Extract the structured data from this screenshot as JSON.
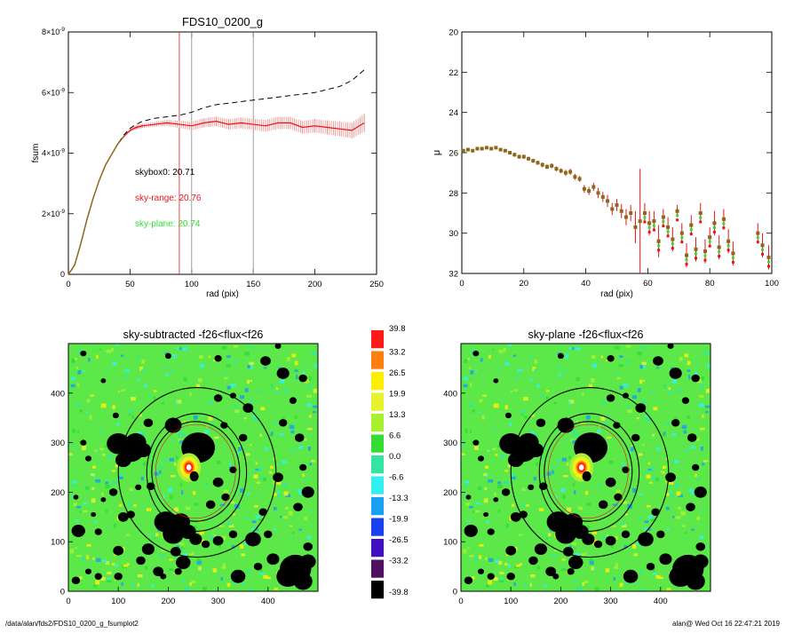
{
  "colors": {
    "red": "#e8141b",
    "pink": "#f08a8a",
    "green": "#33dd33",
    "black": "#000000",
    "gray": "#888888",
    "olive": "#8a6a1a"
  },
  "chart_data": [
    {
      "type": "line",
      "title": "FDS10_0200_g",
      "xlabel": "rad (pix)",
      "ylabel": "fsum",
      "xlim": [
        0,
        250
      ],
      "ylim": [
        0,
        8e-09
      ],
      "xticks": [
        "0",
        "50",
        "100",
        "150",
        "200",
        "250"
      ],
      "yticks": [
        {
          "base": "0",
          "exp": ""
        },
        {
          "base": "2×10",
          "exp": "-9"
        },
        {
          "base": "4×10",
          "exp": "-9"
        },
        {
          "base": "6×10",
          "exp": "-9"
        },
        {
          "base": "8×10",
          "exp": "-9"
        }
      ],
      "vlines": [
        {
          "x": 90,
          "color": "#e8141b"
        },
        {
          "x": 100,
          "color": "#888888"
        },
        {
          "x": 150,
          "color": "#888888"
        }
      ],
      "annotations": [
        {
          "label": "skybox0:",
          "value": "20.71",
          "color": "#000000"
        },
        {
          "label": "sky-range:",
          "value": "20.76",
          "color": "#e8141b"
        },
        {
          "label": "sky-plane:",
          "value": "20.74",
          "color": "#33dd33"
        }
      ],
      "series": [
        {
          "style": "dashed",
          "color": "#000000",
          "x": [
            0,
            5,
            10,
            15,
            20,
            25,
            30,
            35,
            40,
            45,
            50,
            55,
            60,
            70,
            80,
            90,
            100,
            110,
            120,
            130,
            140,
            150,
            160,
            170,
            180,
            190,
            200,
            210,
            220,
            230,
            240
          ],
          "y": [
            0,
            3e-10,
            1e-09,
            1.8e-09,
            2.5e-09,
            3.1e-09,
            3.6e-09,
            3.95e-09,
            4.3e-09,
            4.6e-09,
            4.82e-09,
            4.95e-09,
            5.05e-09,
            5.15e-09,
            5.2e-09,
            5.25e-09,
            5.35e-09,
            5.5e-09,
            5.6e-09,
            5.65e-09,
            5.7e-09,
            5.75e-09,
            5.8e-09,
            5.85e-09,
            5.9e-09,
            5.95e-09,
            6e-09,
            6.1e-09,
            6.2e-09,
            6.4e-09,
            6.75e-09
          ]
        },
        {
          "style": "errorbar",
          "color": "#e8141b",
          "x": [
            0,
            5,
            10,
            15,
            20,
            25,
            30,
            35,
            40,
            45,
            50,
            55,
            60,
            70,
            80,
            90,
            100,
            110,
            120,
            130,
            140,
            150,
            160,
            170,
            180,
            190,
            200,
            210,
            220,
            230,
            240
          ],
          "y": [
            0,
            3e-10,
            1e-09,
            1.8e-09,
            2.5e-09,
            3.1e-09,
            3.6e-09,
            3.95e-09,
            4.3e-09,
            4.55e-09,
            4.75e-09,
            4.85e-09,
            4.9e-09,
            4.95e-09,
            5e-09,
            4.95e-09,
            4.9e-09,
            5e-09,
            5.05e-09,
            4.95e-09,
            5e-09,
            4.95e-09,
            4.9e-09,
            5e-09,
            5e-09,
            4.85e-09,
            4.9e-09,
            4.85e-09,
            4.8e-09,
            4.75e-09,
            5e-09
          ],
          "err": [
            0,
            0,
            0,
            0,
            0,
            0,
            0,
            0,
            0,
            2e-11,
            4e-11,
            6e-11,
            7e-11,
            8e-11,
            1e-10,
            1.2e-10,
            1.4e-10,
            1.5e-10,
            1.6e-10,
            1.7e-10,
            1.8e-10,
            1.8e-10,
            1.9e-10,
            2e-10,
            2e-10,
            2.1e-10,
            2.2e-10,
            2.3e-10,
            2.4e-10,
            2.6e-10,
            3e-10
          ]
        }
      ]
    },
    {
      "type": "scatter",
      "title": "",
      "xlabel": "rad (pix)",
      "ylabel": "μ",
      "xlim": [
        0,
        100
      ],
      "ylim": [
        32,
        20
      ],
      "xticks": [
        "0",
        "20",
        "40",
        "60",
        "80",
        "100"
      ],
      "yticks": [
        "20",
        "22",
        "24",
        "26",
        "28",
        "30",
        "32"
      ],
      "points": [
        {
          "x": 0.5,
          "y": 25.9,
          "e": 0.08
        },
        {
          "x": 2,
          "y": 25.85,
          "e": 0.08
        },
        {
          "x": 3.5,
          "y": 25.9,
          "e": 0.08
        },
        {
          "x": 5,
          "y": 25.8,
          "e": 0.08
        },
        {
          "x": 6.5,
          "y": 25.8,
          "e": 0.08
        },
        {
          "x": 8,
          "y": 25.75,
          "e": 0.08
        },
        {
          "x": 9.5,
          "y": 25.8,
          "e": 0.08
        },
        {
          "x": 11,
          "y": 25.75,
          "e": 0.08
        },
        {
          "x": 12.5,
          "y": 25.85,
          "e": 0.08
        },
        {
          "x": 14,
          "y": 25.9,
          "e": 0.08
        },
        {
          "x": 15.5,
          "y": 26.0,
          "e": 0.08
        },
        {
          "x": 17,
          "y": 26.1,
          "e": 0.1
        },
        {
          "x": 18.5,
          "y": 26.2,
          "e": 0.1
        },
        {
          "x": 20,
          "y": 26.2,
          "e": 0.1
        },
        {
          "x": 21.5,
          "y": 26.3,
          "e": 0.1
        },
        {
          "x": 23,
          "y": 26.4,
          "e": 0.1
        },
        {
          "x": 24.5,
          "y": 26.5,
          "e": 0.1
        },
        {
          "x": 26,
          "y": 26.6,
          "e": 0.12
        },
        {
          "x": 27.5,
          "y": 26.7,
          "e": 0.12
        },
        {
          "x": 29,
          "y": 26.65,
          "e": 0.12
        },
        {
          "x": 30.5,
          "y": 26.8,
          "e": 0.12
        },
        {
          "x": 32,
          "y": 26.9,
          "e": 0.12
        },
        {
          "x": 33.5,
          "y": 27.0,
          "e": 0.15
        },
        {
          "x": 35,
          "y": 26.95,
          "e": 0.15
        },
        {
          "x": 36.5,
          "y": 27.2,
          "e": 0.15
        },
        {
          "x": 38,
          "y": 27.3,
          "e": 0.15
        },
        {
          "x": 39.5,
          "y": 27.8,
          "e": 0.2
        },
        {
          "x": 41,
          "y": 27.9,
          "e": 0.2
        },
        {
          "x": 42.5,
          "y": 27.7,
          "e": 0.2
        },
        {
          "x": 44,
          "y": 28.0,
          "e": 0.25
        },
        {
          "x": 45.5,
          "y": 28.2,
          "e": 0.25
        },
        {
          "x": 47,
          "y": 28.4,
          "e": 0.3
        },
        {
          "x": 48.5,
          "y": 28.8,
          "e": 0.3
        },
        {
          "x": 50,
          "y": 28.6,
          "e": 0.3
        },
        {
          "x": 51.5,
          "y": 28.9,
          "e": 0.35
        },
        {
          "x": 53,
          "y": 29.2,
          "e": 0.4
        },
        {
          "x": 54.5,
          "y": 29.0,
          "e": 0.4
        },
        {
          "x": 56,
          "y": 29.7,
          "e": 0.8
        },
        {
          "x": 57.5,
          "y": 29.4,
          "e": 2.6
        },
        {
          "x": 59,
          "y": 29.0,
          "e": 0.5
        },
        {
          "x": 60.5,
          "y": 29.5,
          "e": 0.6
        },
        {
          "x": 62,
          "y": 29.4,
          "e": 0.5
        },
        {
          "x": 63.5,
          "y": 30.4,
          "e": 0.8
        },
        {
          "x": 65,
          "y": 29.2,
          "e": 0.4
        },
        {
          "x": 66.5,
          "y": 29.7,
          "e": 0.5
        },
        {
          "x": 68,
          "y": 30.3,
          "e": 0.6
        },
        {
          "x": 69.5,
          "y": 28.9,
          "e": 0.3
        },
        {
          "x": 71,
          "y": 30.0,
          "e": 0.5
        },
        {
          "x": 72.5,
          "y": 31.1,
          "e": 0.6
        },
        {
          "x": 74,
          "y": 29.6,
          "e": 0.5
        },
        {
          "x": 75.5,
          "y": 30.8,
          "e": 0.6
        },
        {
          "x": 77,
          "y": 29.0,
          "e": 0.5
        },
        {
          "x": 78.5,
          "y": 30.9,
          "e": 0.6
        },
        {
          "x": 80,
          "y": 30.2,
          "e": 0.5
        },
        {
          "x": 81.5,
          "y": 29.5,
          "e": 0.6
        },
        {
          "x": 83,
          "y": 30.7,
          "e": 0.6
        },
        {
          "x": 84.5,
          "y": 29.3,
          "e": 0.5
        },
        {
          "x": 86,
          "y": 30.4,
          "e": 0.6
        },
        {
          "x": 87.5,
          "y": 31.0,
          "e": 0.6
        },
        {
          "x": 95.5,
          "y": 30.0,
          "e": 0.5
        },
        {
          "x": 97,
          "y": 30.6,
          "e": 0.6
        },
        {
          "x": 99,
          "y": 31.2,
          "e": 0.6
        }
      ]
    },
    {
      "type": "heatmap",
      "title": "sky-subtracted -f26<flux<f26",
      "xlim": [
        0,
        500
      ],
      "ylim": [
        0,
        500
      ],
      "xticks": [
        "0",
        "100",
        "200",
        "300",
        "400"
      ],
      "yticks": [
        "0",
        "100",
        "200",
        "300",
        "400"
      ]
    },
    {
      "type": "heatmap",
      "title": "sky-plane -f26<flux<f26",
      "xlim": [
        0,
        500
      ],
      "ylim": [
        0,
        500
      ],
      "xticks": [
        "0",
        "100",
        "200",
        "300",
        "400"
      ],
      "yticks": [
        "0",
        "100",
        "200",
        "300",
        "400"
      ]
    }
  ],
  "colorbar": {
    "labels": [
      "39.8",
      "33.2",
      "26.5",
      "19.9",
      "13.3",
      "6.6",
      "0.0",
      "-6.6",
      "-13.3",
      "-19.9",
      "-26.5",
      "-33.2",
      "-39.8"
    ],
    "colors": [
      "#ff1a1a",
      "#ff7f0e",
      "#ffee00",
      "#e8f22a",
      "#a8f030",
      "#33dd33",
      "#33e6a0",
      "#33f0f0",
      "#1aa0f0",
      "#1a40f0",
      "#4010c0",
      "#501060",
      "#000000"
    ]
  },
  "footer": {
    "path": "/data/alan/fds2/FDS10_0200_g_fsumplot2",
    "stamp": "alan@  Wed Oct 16 22:47:21 2019"
  }
}
